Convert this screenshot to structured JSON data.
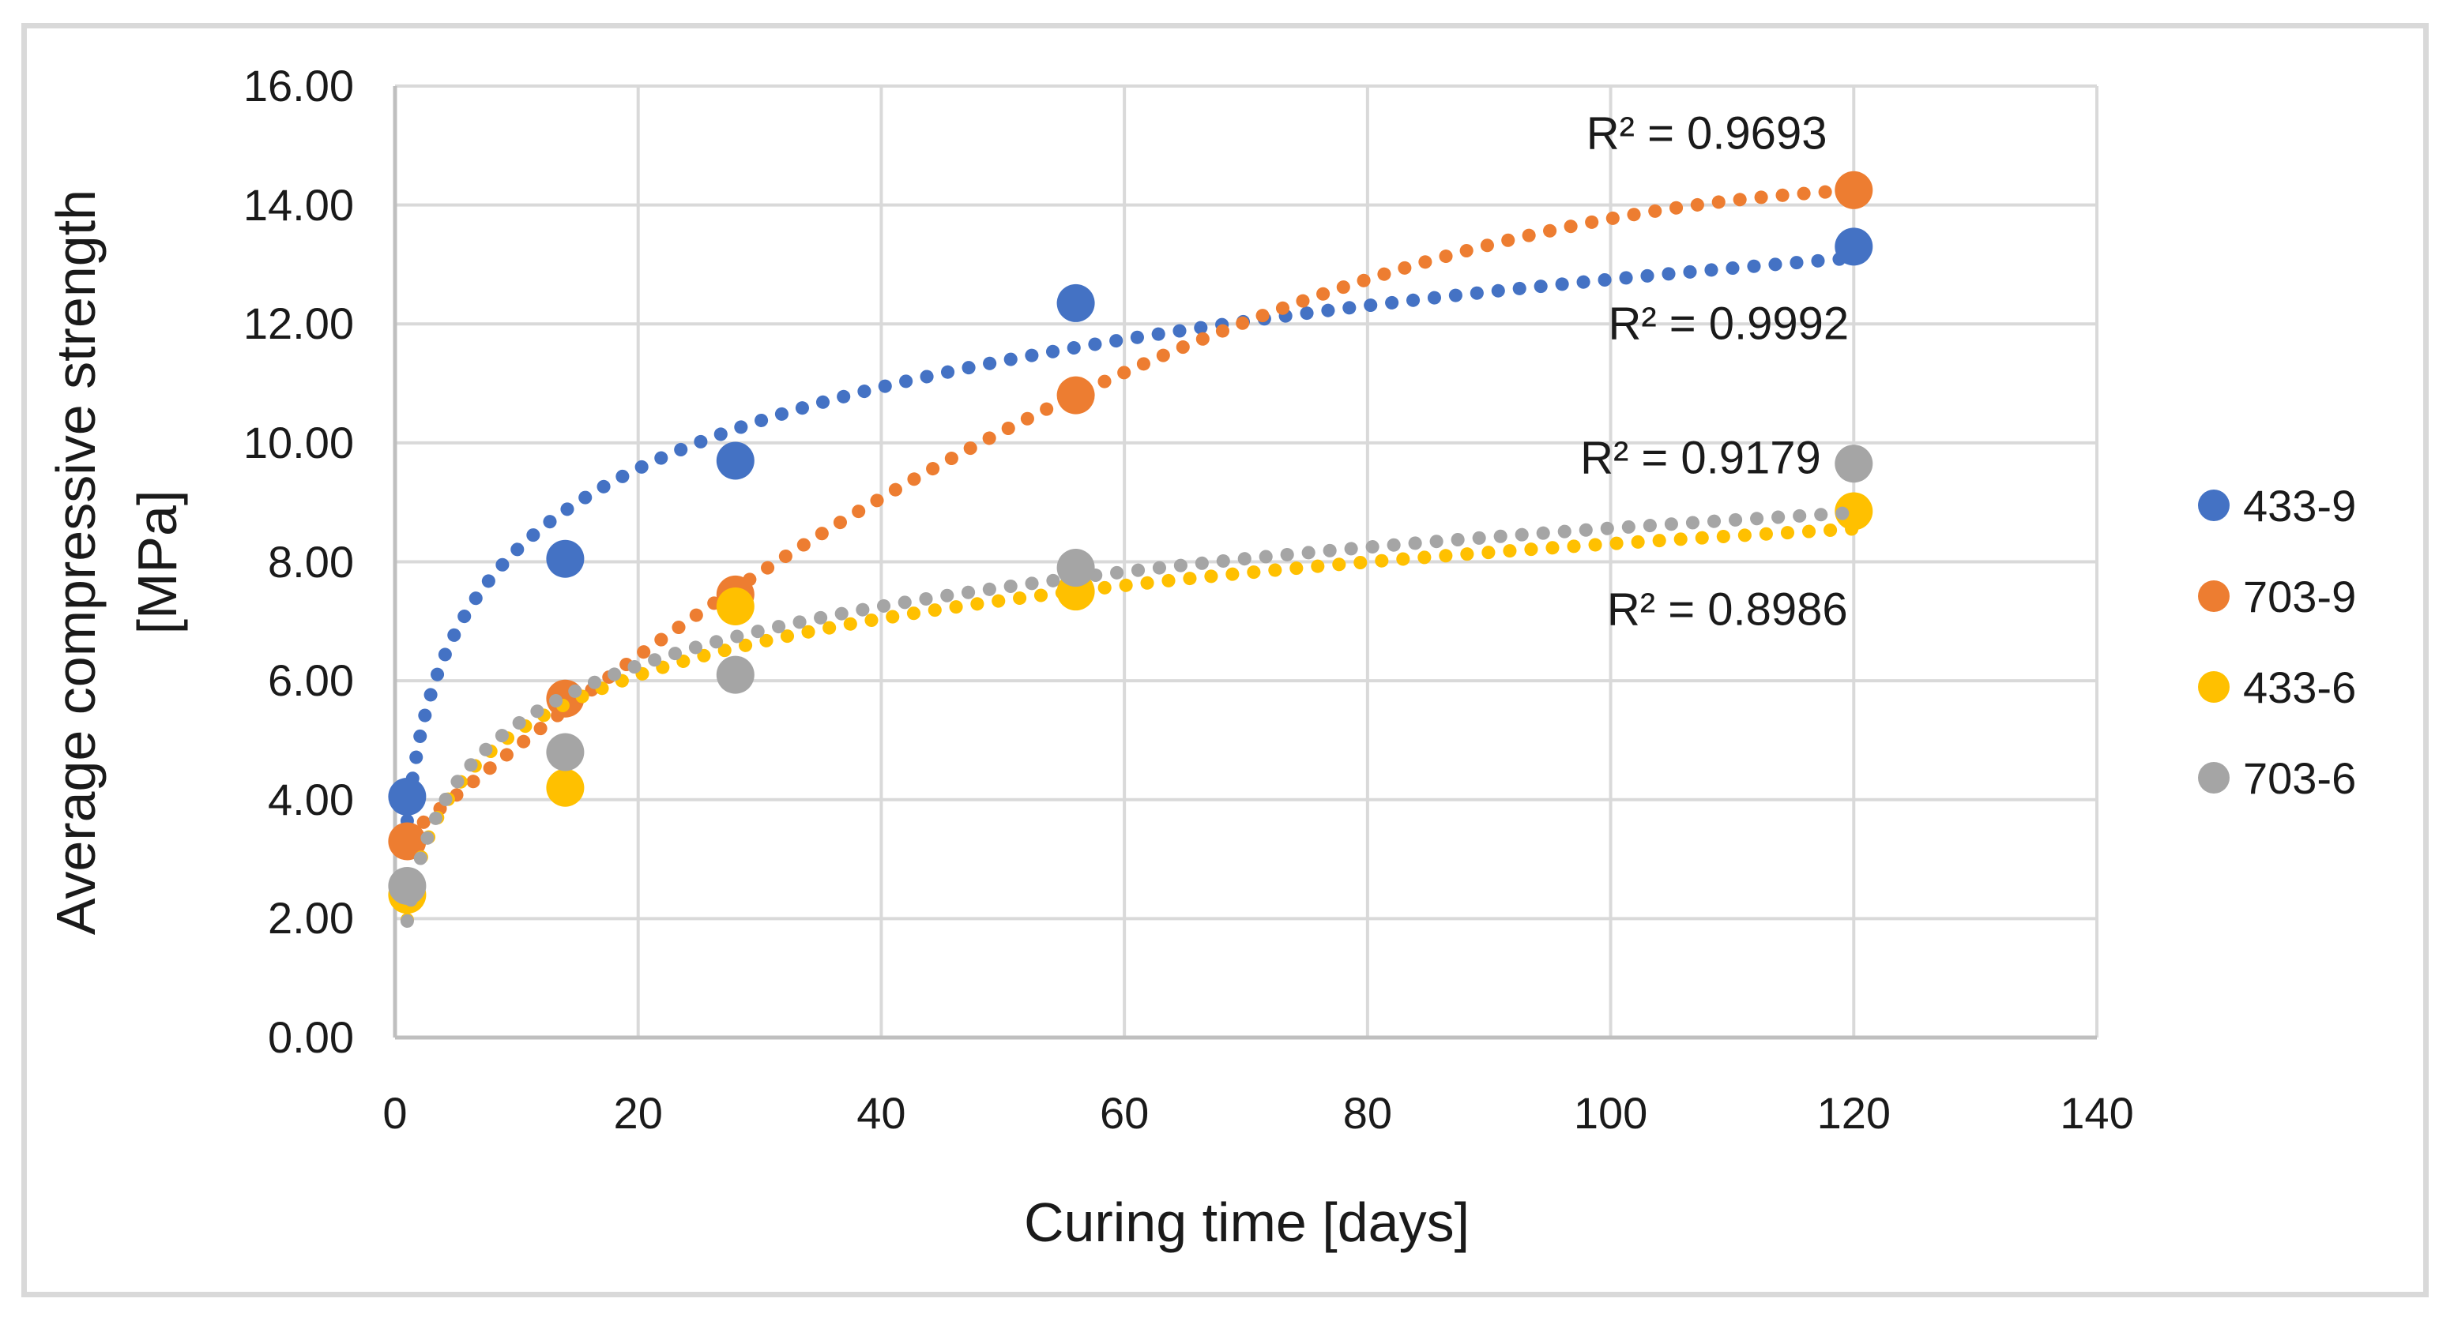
{
  "chart_data": {
    "type": "scatter",
    "title": "",
    "xlabel": "Curing time [days]",
    "ylabel": "Average compressive strength [MPa]",
    "ylabel_lines": [
      "Average compressive strength",
      "[MPa]"
    ],
    "xlim": [
      0,
      140
    ],
    "ylim": [
      0,
      16
    ],
    "x_tick_values": [
      0,
      20,
      40,
      60,
      80,
      100,
      120,
      140
    ],
    "x_tick_labels": [
      "0",
      "20",
      "40",
      "60",
      "80",
      "100",
      "120",
      "140"
    ],
    "y_tick_values": [
      0,
      2,
      4,
      6,
      8,
      10,
      12,
      14,
      16
    ],
    "y_tick_labels": [
      "0.00",
      "2.00",
      "4.00",
      "6.00",
      "8.00",
      "10.00",
      "12.00",
      "14.00",
      "16.00"
    ],
    "grid": true,
    "legend_position": "right",
    "x": [
      1,
      14,
      28,
      56,
      120
    ],
    "series": [
      {
        "name": "433-9",
        "color": "#4472C4",
        "values": [
          4.05,
          8.05,
          9.7,
          12.35,
          13.3
        ],
        "trendline": "logarithmic"
      },
      {
        "name": "703-9",
        "color": "#ED7D31",
        "values": [
          3.3,
          5.7,
          7.45,
          10.8,
          14.25
        ],
        "trendline": "polynomial2"
      },
      {
        "name": "433-6",
        "color": "#FFC000",
        "values": [
          2.4,
          4.2,
          7.25,
          7.5,
          8.85
        ],
        "trendline": "logarithmic"
      },
      {
        "name": "703-6",
        "color": "#A5A5A5",
        "values": [
          2.55,
          4.8,
          6.1,
          7.9,
          9.65
        ],
        "trendline": "logarithmic"
      }
    ],
    "annotations": [
      {
        "text": "R² = 0.9693",
        "x": 107.9,
        "y": 15.2
      },
      {
        "text": "R² = 0.9992",
        "x": 109.7,
        "y": 12.0
      },
      {
        "text": "R² = 0.9179",
        "x": 107.4,
        "y": 9.75
      },
      {
        "text": "R² = 0.8986",
        "x": 109.6,
        "y": 7.2
      }
    ],
    "colors": {
      "gridline": "#D9D9D9",
      "axis_line": "#BFBFBF",
      "text": "#1A1A1A",
      "background": "#FFFFFF",
      "figure_border": "#D9D9D9"
    }
  }
}
